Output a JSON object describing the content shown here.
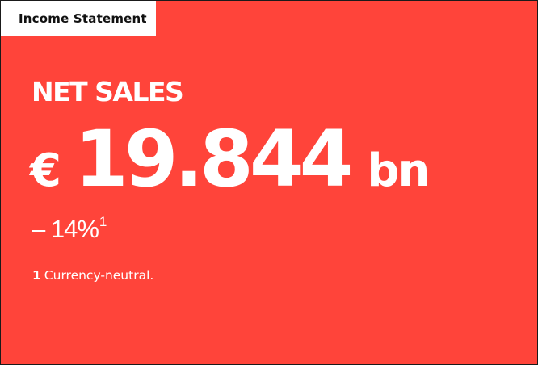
{
  "tab": {
    "label": "Income Statement"
  },
  "kpi": {
    "label": "NET SALES",
    "currency": "€",
    "value": "19.844",
    "unit": "bn",
    "change": "– 14%",
    "change_footnote_ref": "1"
  },
  "footnote": {
    "number": "1",
    "text": "Currency-neutral."
  },
  "colors": {
    "background": "#ff443a",
    "tab_background": "#ffffff",
    "text": "#ffffff",
    "tab_text": "#111111"
  }
}
